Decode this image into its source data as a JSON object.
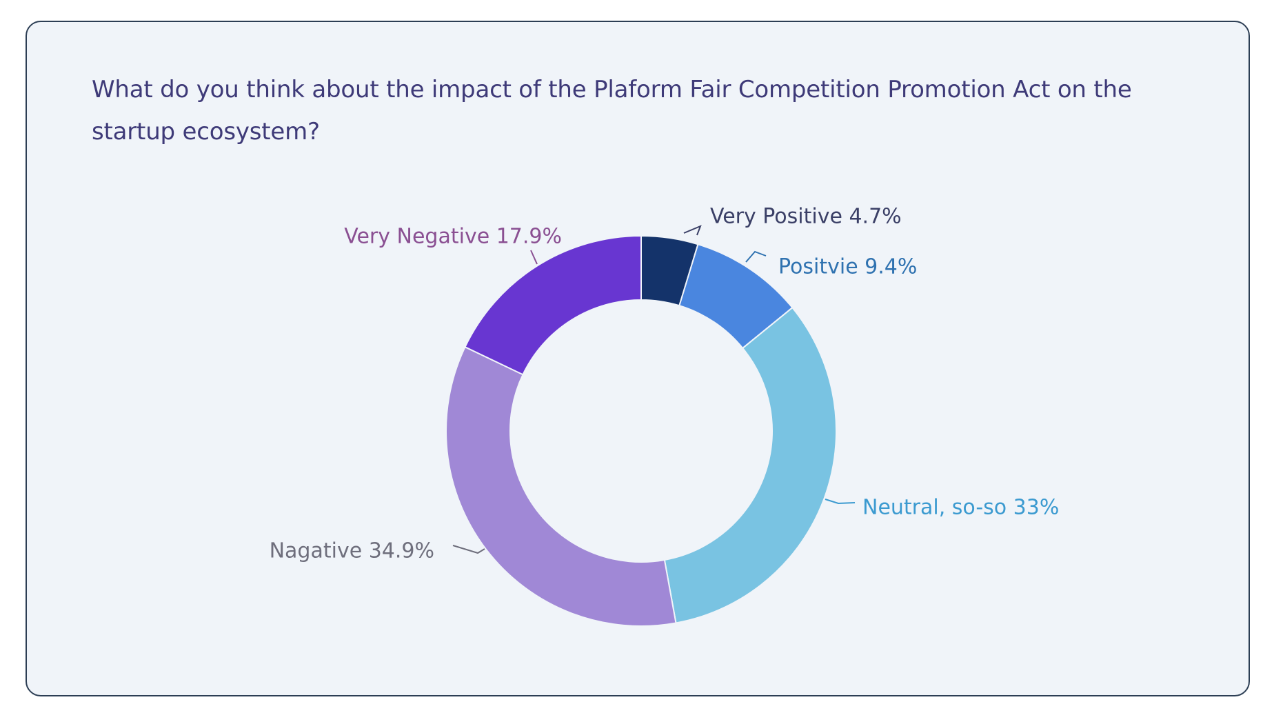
{
  "question": "What do you think about the impact of the Plaform Fair Competition Promotion Act on the startup ecosystem?",
  "chart_data": {
    "type": "pie",
    "variant": "donut",
    "title": "What do you think about the impact of the Plaform Fair Competition Promotion Act on the startup ecosystem?",
    "slices": [
      {
        "label": "Very Positive",
        "value": 4.7,
        "display": "Very Positive 4.7%",
        "color": "#14336a",
        "text_color": "#3a3f66"
      },
      {
        "label": "Positvie",
        "value": 9.4,
        "display": "Positvie 9.4%",
        "color": "#4a86df",
        "text_color": "#2f72b0"
      },
      {
        "label": "Neutral, so-so",
        "value": 33,
        "display": "Neutral, so-so 33%",
        "color": "#79c3e2",
        "text_color": "#3b9ad0"
      },
      {
        "label": "Nagative",
        "value": 34.9,
        "display": "Nagative 34.9%",
        "color": "#a088d6",
        "text_color": "#6e6e7c"
      },
      {
        "label": "Very Negative",
        "value": 17.9,
        "display": "Very Negative 17.9%",
        "color": "#6836d1",
        "text_color": "#8a4f92"
      }
    ],
    "start": "12 o'clock",
    "direction": "clockwise",
    "legend": "none"
  }
}
